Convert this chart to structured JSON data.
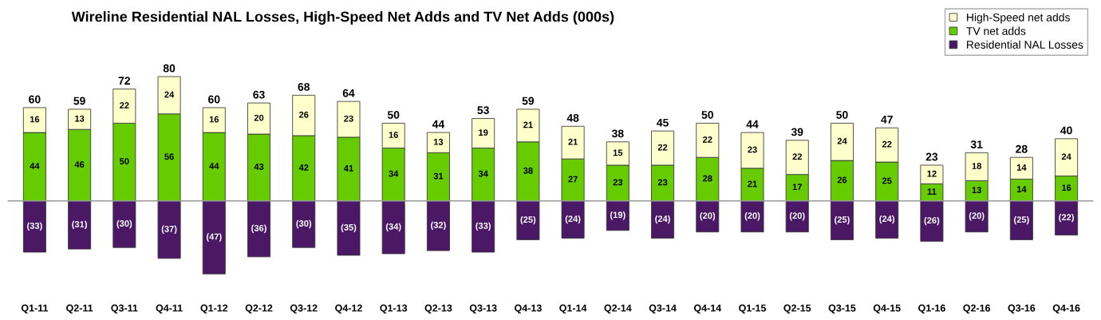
{
  "chart_data": {
    "type": "bar",
    "title": "Wireline Residential NAL Losses, High-Speed Net Adds and TV Net Adds (000s)",
    "categories": [
      "Q1-11",
      "Q2-11",
      "Q3-11",
      "Q4-11",
      "Q1-12",
      "Q2-12",
      "Q3-12",
      "Q4-12",
      "Q1-13",
      "Q2-13",
      "Q3-13",
      "Q4-13",
      "Q1-14",
      "Q2-14",
      "Q3-14",
      "Q4-14",
      "Q1-15",
      "Q2-15",
      "Q3-15",
      "Q4-15",
      "Q1-16",
      "Q2-16",
      "Q3-16",
      "Q4-16"
    ],
    "stacked": true,
    "series": [
      {
        "name": "Residential NAL Losses",
        "color": "#4b1866",
        "values": [
          -33,
          -31,
          -30,
          -37,
          -47,
          -36,
          -30,
          -35,
          -34,
          -32,
          -33,
          -25,
          -24,
          -19,
          -24,
          -20,
          -20,
          -20,
          -25,
          -24,
          -26,
          -20,
          -25,
          -22
        ],
        "value_labels": [
          "(33)",
          "(31)",
          "(30)",
          "(37)",
          "(47)",
          "(36)",
          "(30)",
          "(35)",
          "(34)",
          "(32)",
          "(33)",
          "(25)",
          "(24)",
          "(19)",
          "(24)",
          "(20)",
          "(20)",
          "(20)",
          "(25)",
          "(24)",
          "(26)",
          "(20)",
          "(25)",
          "(22)"
        ]
      },
      {
        "name": "TV net adds",
        "color": "#66cc00",
        "values": [
          44,
          46,
          50,
          56,
          44,
          43,
          42,
          41,
          34,
          31,
          34,
          38,
          27,
          23,
          23,
          28,
          21,
          17,
          26,
          25,
          11,
          13,
          14,
          16
        ],
        "value_labels": [
          "44",
          "46",
          "50",
          "56",
          "44",
          "43",
          "42",
          "41",
          "34",
          "31",
          "34",
          "38",
          "27",
          "23",
          "23",
          "28",
          "21",
          "17",
          "26",
          "25",
          "11",
          "13",
          "14",
          "16"
        ]
      },
      {
        "name": "High-Speed net adds",
        "color": "#ffffcc",
        "values": [
          16,
          13,
          22,
          24,
          16,
          20,
          26,
          23,
          16,
          13,
          19,
          21,
          21,
          15,
          22,
          22,
          23,
          22,
          24,
          22,
          12,
          18,
          14,
          24
        ],
        "value_labels": [
          "16",
          "13",
          "22",
          "24",
          "16",
          "20",
          "26",
          "23",
          "16",
          "13",
          "19",
          "21",
          "21",
          "15",
          "22",
          "22",
          "23",
          "22",
          "24",
          "22",
          "12",
          "18",
          "14",
          "24"
        ]
      }
    ],
    "annotations": [
      {
        "text": "60",
        "x": "Q1-11",
        "y": 60
      },
      {
        "text": "59",
        "x": "Q2-11",
        "y": 59
      },
      {
        "text": "72",
        "x": "Q3-11",
        "y": 72
      },
      {
        "text": "80",
        "x": "Q4-11",
        "y": 80
      },
      {
        "text": "60",
        "x": "Q1-12",
        "y": 60
      },
      {
        "text": "63",
        "x": "Q2-12",
        "y": 63
      },
      {
        "text": "68",
        "x": "Q3-12",
        "y": 68
      },
      {
        "text": "64",
        "x": "Q4-12",
        "y": 64
      },
      {
        "text": "50",
        "x": "Q1-13",
        "y": 50
      },
      {
        "text": "44",
        "x": "Q2-13",
        "y": 44
      },
      {
        "text": "53",
        "x": "Q3-13",
        "y": 53
      },
      {
        "text": "59",
        "x": "Q4-13",
        "y": 59
      },
      {
        "text": "48",
        "x": "Q1-14",
        "y": 48
      },
      {
        "text": "38",
        "x": "Q2-14",
        "y": 38
      },
      {
        "text": "45",
        "x": "Q3-14",
        "y": 45
      },
      {
        "text": "50",
        "x": "Q4-14",
        "y": 50
      },
      {
        "text": "44",
        "x": "Q1-15",
        "y": 44
      },
      {
        "text": "39",
        "x": "Q2-15",
        "y": 39
      },
      {
        "text": "50",
        "x": "Q3-15",
        "y": 50
      },
      {
        "text": "47",
        "x": "Q4-15",
        "y": 47
      },
      {
        "text": "23",
        "x": "Q1-16",
        "y": 23
      },
      {
        "text": "31",
        "x": "Q2-16",
        "y": 31
      },
      {
        "text": "28",
        "x": "Q3-16",
        "y": 28
      },
      {
        "text": "40",
        "x": "Q4-16",
        "y": 40
      }
    ],
    "tick_labels": "x",
    "legend": "top right",
    "grid": false
  }
}
